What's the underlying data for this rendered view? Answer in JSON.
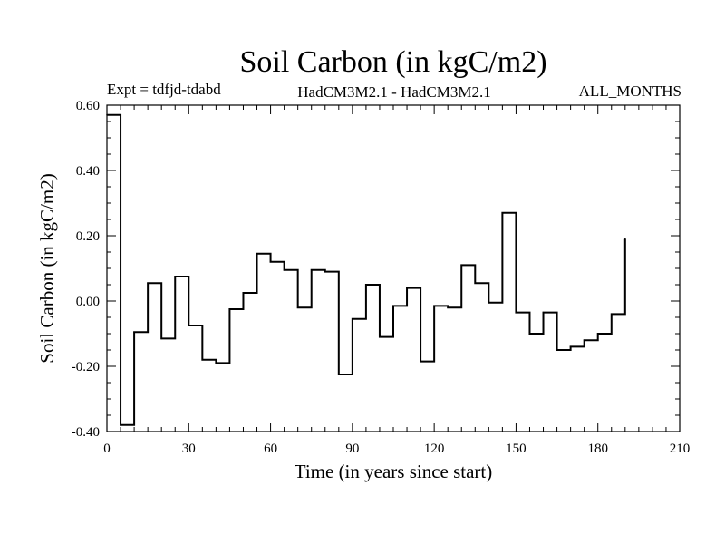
{
  "chart_data": {
    "type": "line",
    "title": "Soil Carbon (in kgC/m2)",
    "header_left": "Expt = tdfjd-tdabd",
    "header_center": "HadCM3M2.1 - HadCM3M2.1",
    "header_right": "ALL_MONTHS",
    "xlabel": "Time (in years since start)",
    "ylabel": "Soil Carbon (in kgC/m2)",
    "xlim": [
      0,
      210
    ],
    "ylim": [
      -0.4,
      0.6
    ],
    "x_ticks": [
      0,
      30,
      60,
      90,
      120,
      150,
      180,
      210
    ],
    "y_ticks": [
      -0.4,
      -0.2,
      0.0,
      0.2,
      0.4,
      0.6
    ],
    "x_tick_labels": [
      "0",
      "30",
      "60",
      "90",
      "120",
      "150",
      "180",
      "210"
    ],
    "y_tick_labels": [
      "-0.40",
      "-0.20",
      "0.00",
      "0.20",
      "0.40",
      "0.60"
    ],
    "grid": false,
    "line_color": "#000000",
    "series": [
      {
        "step": "post",
        "x": [
          0,
          5,
          10,
          15,
          20,
          25,
          30,
          35,
          40,
          45,
          50,
          55,
          60,
          65,
          70,
          75,
          80,
          85,
          90,
          95,
          100,
          105,
          110,
          115,
          120,
          125,
          130,
          135,
          140,
          145,
          150,
          155,
          160,
          165,
          170,
          175,
          180,
          185,
          190
        ],
        "values": [
          0.57,
          -0.38,
          -0.095,
          0.055,
          -0.115,
          0.075,
          -0.075,
          -0.18,
          -0.19,
          -0.025,
          0.025,
          0.145,
          0.12,
          0.095,
          -0.02,
          0.095,
          0.09,
          -0.225,
          -0.055,
          0.05,
          -0.11,
          -0.015,
          0.04,
          -0.185,
          -0.015,
          -0.02,
          0.11,
          0.055,
          -0.005,
          0.27,
          -0.035,
          -0.1,
          -0.035,
          -0.15,
          -0.14,
          -0.12,
          -0.1,
          -0.04,
          0.19
        ]
      }
    ]
  }
}
